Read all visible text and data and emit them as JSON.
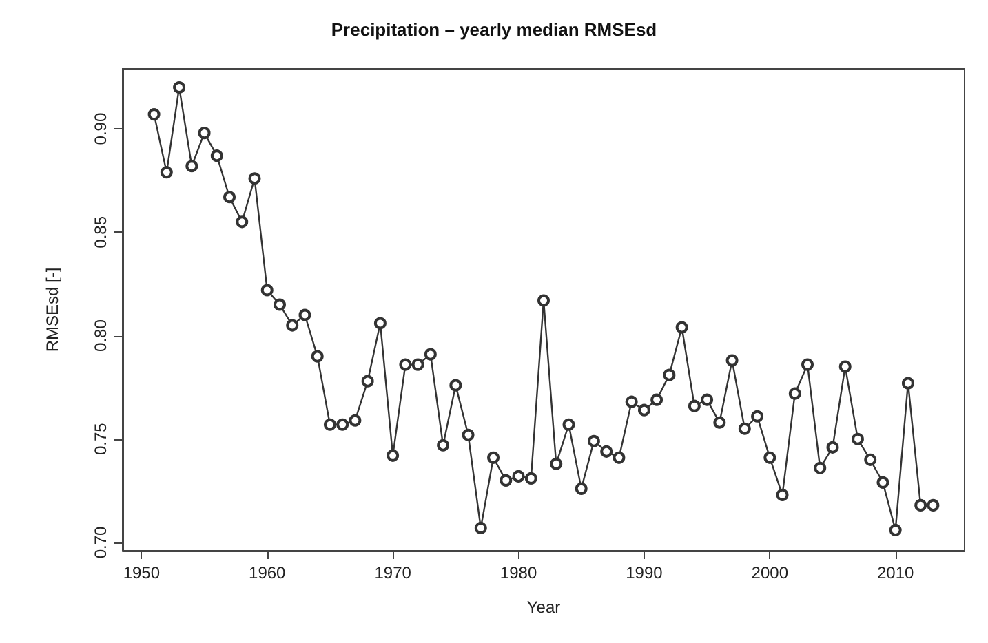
{
  "chart_data": {
    "type": "line",
    "title": "Precipitation – yearly median RMSEsd",
    "xlabel": "Year",
    "ylabel": "RMSEsd [-]",
    "x": [
      1951,
      1952,
      1953,
      1954,
      1955,
      1956,
      1957,
      1958,
      1959,
      1960,
      1961,
      1962,
      1963,
      1964,
      1965,
      1966,
      1967,
      1968,
      1969,
      1970,
      1971,
      1972,
      1973,
      1974,
      1975,
      1976,
      1977,
      1978,
      1979,
      1980,
      1981,
      1982,
      1983,
      1984,
      1985,
      1986,
      1987,
      1988,
      1989,
      1990,
      1991,
      1992,
      1993,
      1994,
      1995,
      1996,
      1997,
      1998,
      1999,
      2000,
      2001,
      2002,
      2003,
      2004,
      2005,
      2006,
      2007,
      2008,
      2009,
      2010,
      2011,
      2012,
      2013
    ],
    "series": [
      {
        "color": "#333333",
        "values": [
          0.907,
          0.879,
          0.92,
          0.882,
          0.898,
          0.887,
          0.867,
          0.855,
          0.876,
          0.822,
          0.815,
          0.805,
          0.81,
          0.79,
          0.757,
          0.757,
          0.759,
          0.778,
          0.806,
          0.742,
          0.786,
          0.786,
          0.791,
          0.747,
          0.776,
          0.752,
          0.707,
          0.741,
          0.73,
          0.732,
          0.731,
          0.817,
          0.738,
          0.757,
          0.726,
          0.749,
          0.744,
          0.741,
          0.768,
          0.764,
          0.769,
          0.781,
          0.804,
          0.766,
          0.769,
          0.758,
          0.788,
          0.755,
          0.761,
          0.741,
          0.723,
          0.772,
          0.786,
          0.736,
          0.746,
          0.785,
          0.75,
          0.74,
          0.729,
          0.706,
          0.777,
          0.718,
          0.718
        ]
      }
    ],
    "xlim": [
      1948.5,
      2015.5
    ],
    "xticks": [
      1950,
      1960,
      1970,
      1980,
      1990,
      2000,
      2010
    ],
    "ylim": [
      0.696,
      0.929
    ],
    "yticks": [
      {
        "value": 0.7,
        "label": "0.70"
      },
      {
        "value": 0.75,
        "label": "0.75"
      },
      {
        "value": 0.8,
        "label": "0.80"
      },
      {
        "value": 0.85,
        "label": "0.85"
      },
      {
        "value": 0.9,
        "label": "0.90"
      }
    ],
    "grid": false,
    "marker": "circle",
    "line_style": "solid"
  }
}
